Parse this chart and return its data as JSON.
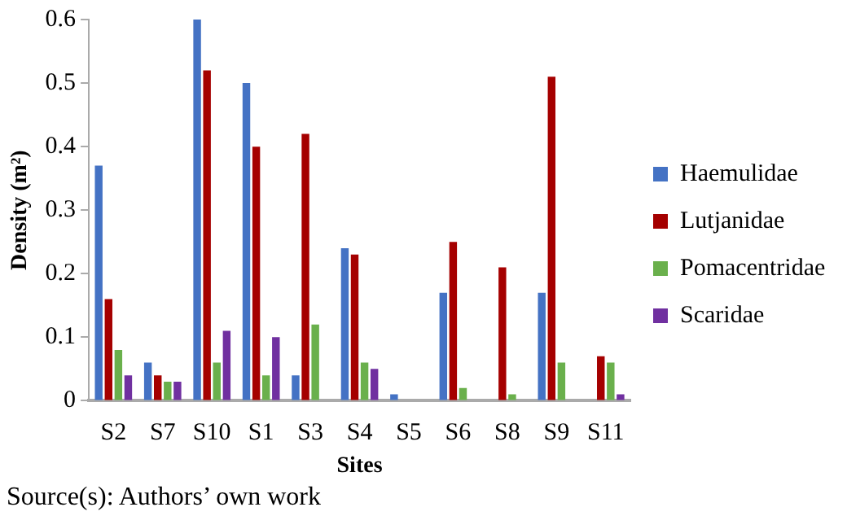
{
  "chart_data": {
    "type": "bar",
    "xlabel": "Sites",
    "ylabel": "Density (m²)",
    "categories": [
      "S2",
      "S7",
      "S10",
      "S1",
      "S3",
      "S4",
      "S5",
      "S6",
      "S8",
      "S9",
      "S11"
    ],
    "series": [
      {
        "name": "Haemulidae",
        "color": "#4472c4",
        "values": [
          0.37,
          0.06,
          0.6,
          0.5,
          0.04,
          0.24,
          0.01,
          0.17,
          0,
          0.17,
          0
        ]
      },
      {
        "name": "Lutjanidae",
        "color": "#a50000",
        "values": [
          0.16,
          0.04,
          0.52,
          0.4,
          0.42,
          0.23,
          0,
          0.25,
          0.21,
          0.51,
          0.07
        ]
      },
      {
        "name": "Pomacentridae",
        "color": "#6ab04c",
        "values": [
          0.08,
          0.03,
          0.06,
          0.04,
          0.12,
          0.06,
          0,
          0.02,
          0.01,
          0.06,
          0.06
        ]
      },
      {
        "name": "Scaridae",
        "color": "#7030a0",
        "values": [
          0.04,
          0.03,
          0.11,
          0.1,
          0,
          0.05,
          0,
          0,
          0,
          0,
          0.01
        ]
      }
    ],
    "ylim": [
      0,
      0.6
    ],
    "yticks": [
      0,
      0.1,
      0.2,
      0.3,
      0.4,
      0.5,
      0.6
    ],
    "grid": false,
    "legend": "right",
    "annotations": [
      "Source(s): Authors’ own work"
    ]
  }
}
